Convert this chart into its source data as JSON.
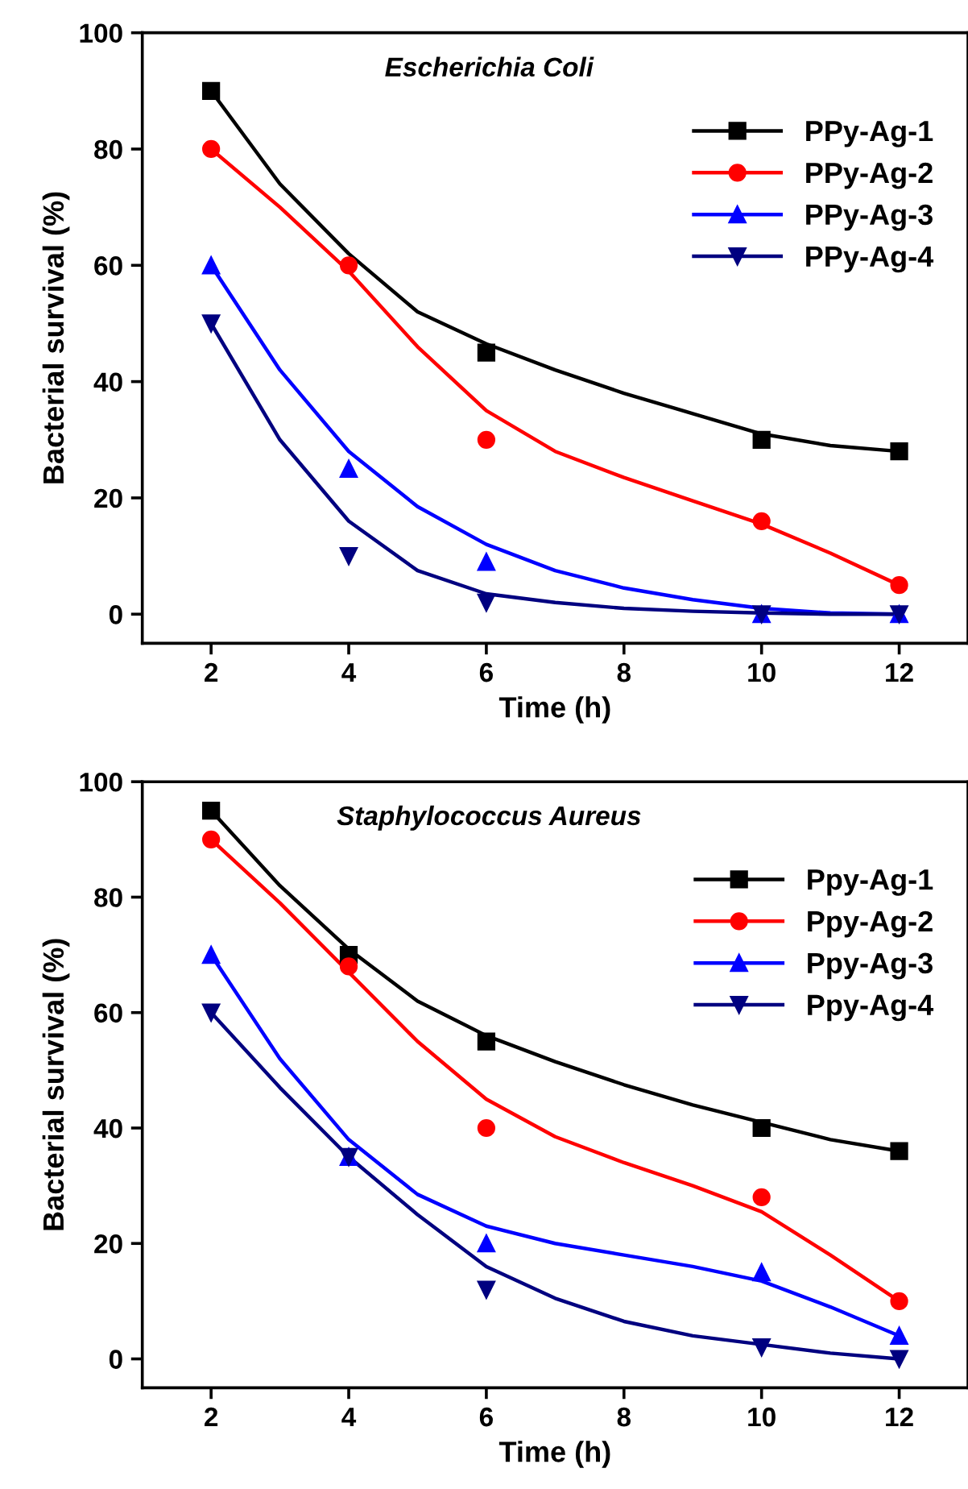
{
  "chart_data": [
    {
      "type": "scatter",
      "title": "Escherichia Coli",
      "xlabel": "Time (h)",
      "ylabel": "Bacterial survival (%)",
      "xlim": [
        1,
        13
      ],
      "ylim": [
        -5,
        100
      ],
      "xticks": [
        2,
        4,
        6,
        8,
        10,
        12
      ],
      "yticks": [
        0,
        20,
        40,
        60,
        80,
        100
      ],
      "grid": false,
      "legend": "top right",
      "series": [
        {
          "type": "line",
          "color": "#000000",
          "x": [
            2,
            3,
            4,
            5,
            6,
            7,
            8,
            9,
            10,
            11,
            12
          ],
          "values": [
            90,
            74,
            62,
            52,
            46.5,
            42,
            38,
            34.5,
            31,
            29,
            28
          ]
        },
        {
          "type": "line",
          "color": "#ff0000",
          "x": [
            2,
            3,
            4,
            5,
            6,
            7,
            8,
            9,
            10,
            11,
            12
          ],
          "values": [
            80,
            70,
            59,
            46,
            35,
            28,
            23.5,
            19.5,
            15.5,
            10.5,
            5
          ]
        },
        {
          "type": "line",
          "color": "#0000ff",
          "x": [
            2,
            3,
            4,
            5,
            6,
            7,
            8,
            9,
            10,
            11,
            12
          ],
          "values": [
            60,
            42,
            28,
            18.5,
            12,
            7.5,
            4.5,
            2.5,
            1,
            0.2,
            0
          ]
        },
        {
          "type": "line",
          "color": "#000080",
          "x": [
            2,
            3,
            4,
            5,
            6,
            7,
            8,
            9,
            10,
            11,
            12
          ],
          "values": [
            50,
            30,
            16,
            7.5,
            3.5,
            2,
            1,
            0.5,
            0.2,
            0,
            0
          ]
        },
        {
          "name": "PPy-Ag-1",
          "marker": "square",
          "color": "#000000",
          "x": [
            2,
            4,
            6,
            10,
            12
          ],
          "values": [
            90,
            null,
            45,
            30,
            28
          ]
        },
        {
          "name": "PPy-Ag-2",
          "marker": "circle",
          "color": "#ff0000",
          "x": [
            2,
            4,
            6,
            10,
            12
          ],
          "values": [
            80,
            60,
            30,
            16,
            5
          ]
        },
        {
          "name": "PPy-Ag-3",
          "marker": "triangle",
          "color": "#0000ff",
          "x": [
            2,
            4,
            6,
            10,
            12
          ],
          "values": [
            60,
            25,
            9,
            0,
            0
          ]
        },
        {
          "name": "PPy-Ag-4",
          "marker": "triangle_down",
          "color": "#000080",
          "x": [
            2,
            4,
            6,
            10,
            12
          ],
          "values": [
            50,
            10,
            2,
            0,
            0
          ]
        }
      ]
    },
    {
      "type": "scatter",
      "title": "Staphylococcus Aureus",
      "xlabel": "Time (h)",
      "ylabel": "Bacterial survival (%)",
      "xlim": [
        1,
        13
      ],
      "ylim": [
        -5,
        100
      ],
      "xticks": [
        2,
        4,
        6,
        8,
        10,
        12
      ],
      "yticks": [
        0,
        20,
        40,
        60,
        80,
        100
      ],
      "grid": false,
      "legend": "top right",
      "series": [
        {
          "type": "line",
          "color": "#000000",
          "x": [
            2,
            3,
            4,
            5,
            6,
            7,
            8,
            9,
            10,
            11,
            12
          ],
          "values": [
            95,
            82,
            71,
            62,
            56,
            51.5,
            47.5,
            44,
            41,
            38,
            36
          ]
        },
        {
          "type": "line",
          "color": "#ff0000",
          "x": [
            2,
            3,
            4,
            5,
            6,
            7,
            8,
            9,
            10,
            11,
            12
          ],
          "values": [
            90,
            79,
            67,
            55,
            45,
            38.5,
            34,
            30,
            25.5,
            18,
            10
          ]
        },
        {
          "type": "line",
          "color": "#0000ff",
          "x": [
            2,
            3,
            4,
            5,
            6,
            7,
            8,
            9,
            10,
            11,
            12
          ],
          "values": [
            70,
            52,
            38,
            28.5,
            23,
            20,
            18,
            16,
            13.5,
            9,
            4
          ]
        },
        {
          "type": "line",
          "color": "#000080",
          "x": [
            2,
            3,
            4,
            5,
            6,
            7,
            8,
            9,
            10,
            11,
            12
          ],
          "values": [
            60,
            47,
            35,
            25,
            16,
            10.5,
            6.5,
            4,
            2.5,
            1,
            0
          ]
        },
        {
          "name": "Ppy-Ag-1",
          "marker": "square",
          "color": "#000000",
          "x": [
            2,
            4,
            6,
            10,
            12
          ],
          "values": [
            95,
            70,
            55,
            40,
            36
          ]
        },
        {
          "name": "Ppy-Ag-2",
          "marker": "circle",
          "color": "#ff0000",
          "x": [
            2,
            4,
            6,
            10,
            12
          ],
          "values": [
            90,
            68,
            40,
            28,
            10
          ]
        },
        {
          "name": "Ppy-Ag-3",
          "marker": "triangle",
          "color": "#0000ff",
          "x": [
            2,
            4,
            6,
            10,
            12
          ],
          "values": [
            70,
            35,
            20,
            15,
            4
          ]
        },
        {
          "name": "Ppy-Ag-4",
          "marker": "triangle_down",
          "color": "#000080",
          "x": [
            2,
            4,
            6,
            10,
            12
          ],
          "values": [
            60,
            35,
            12,
            2,
            0
          ]
        }
      ]
    }
  ]
}
